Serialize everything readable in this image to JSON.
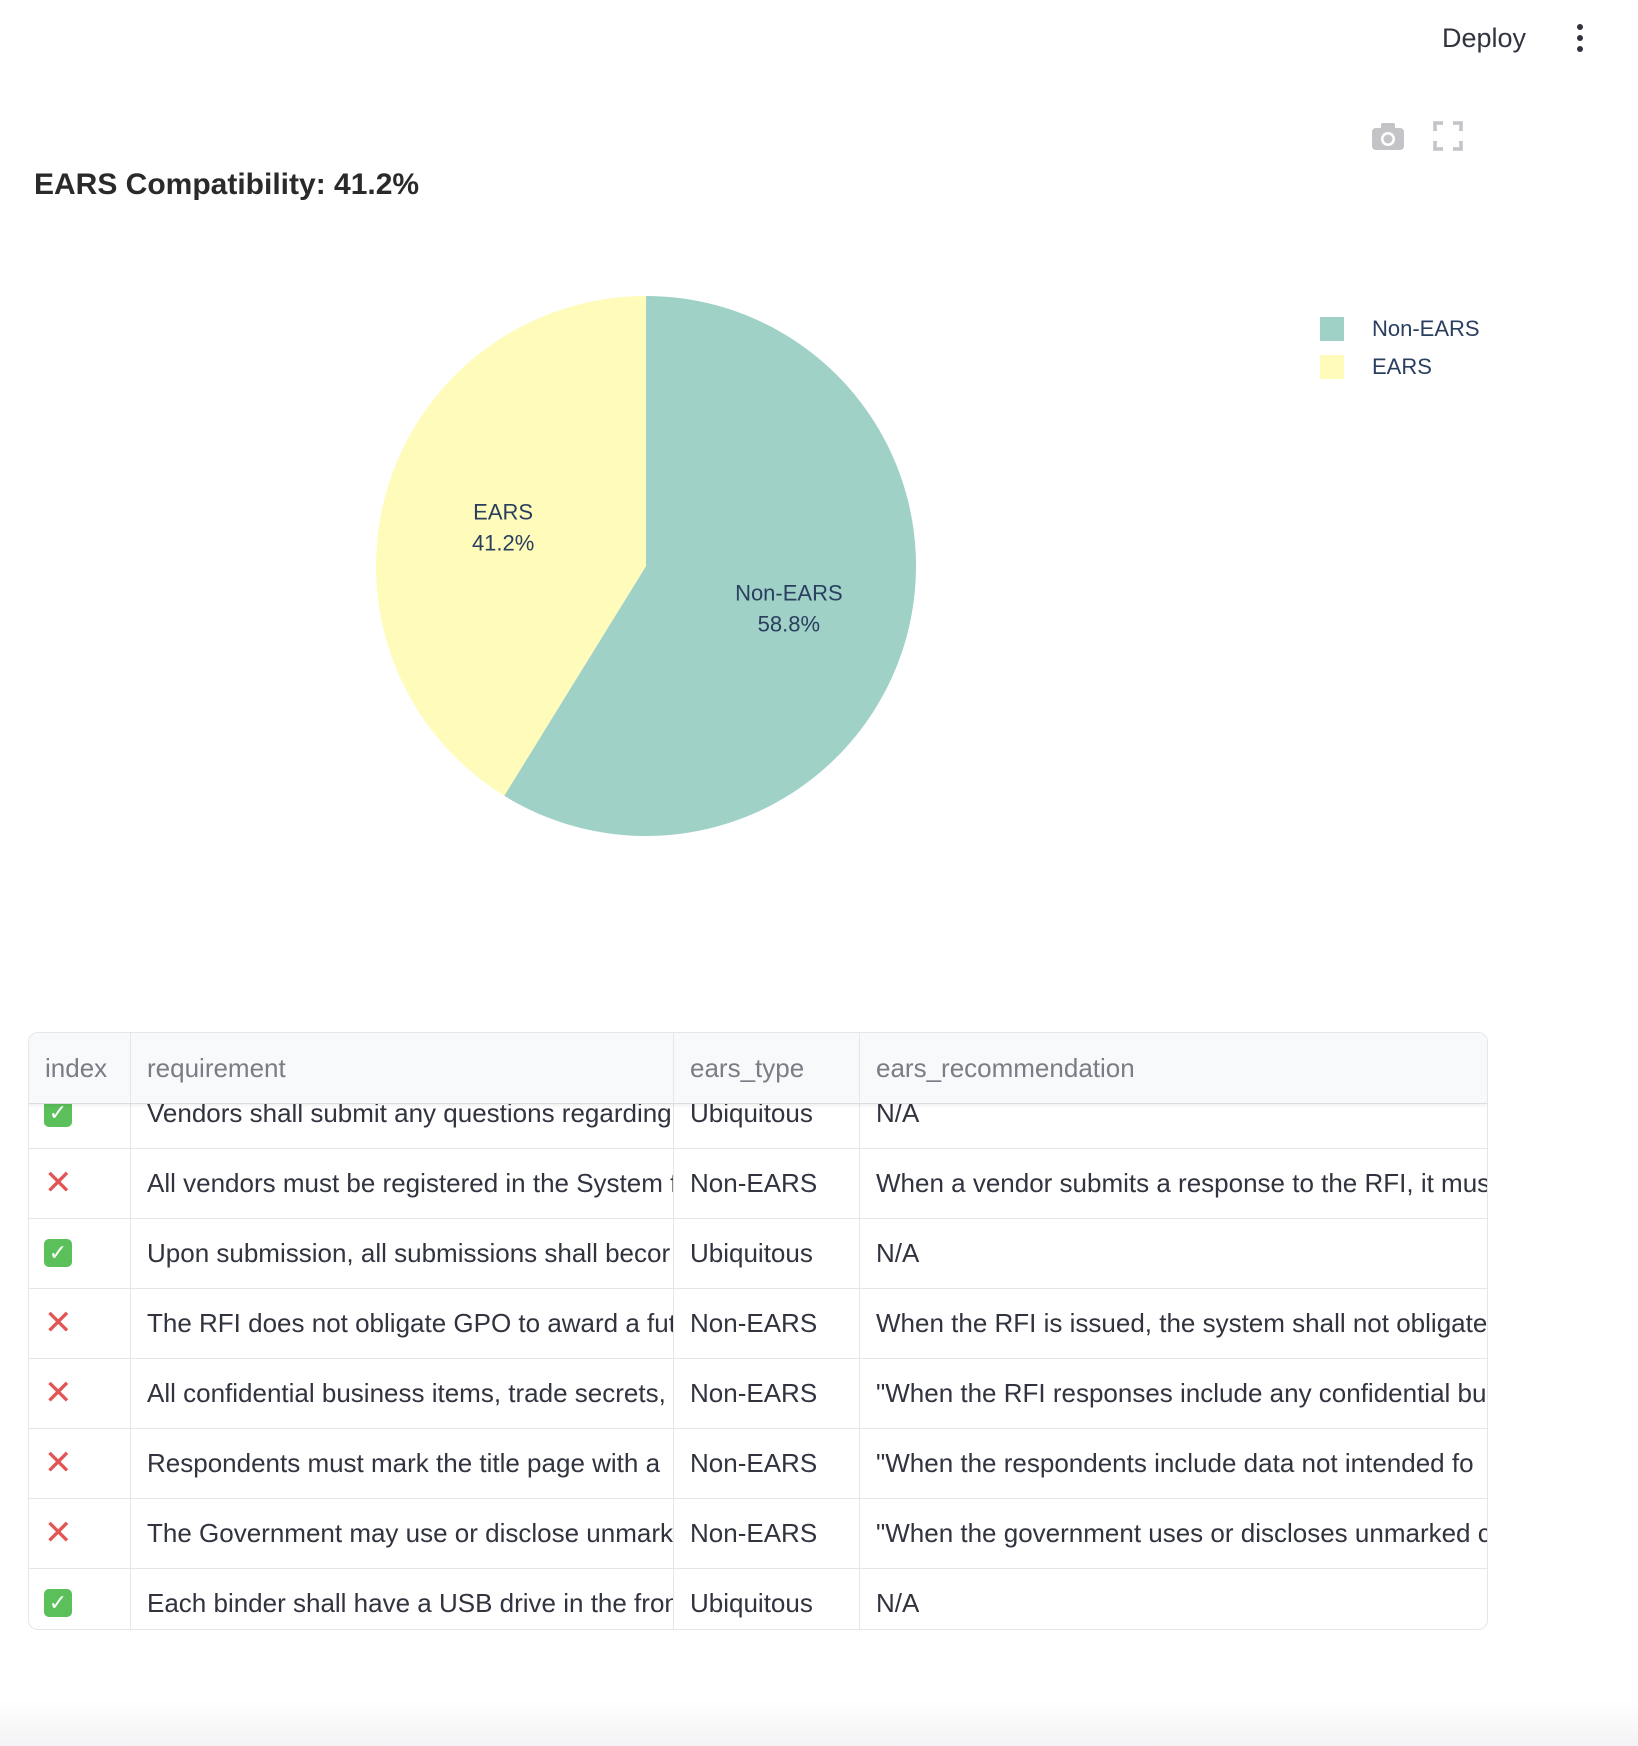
{
  "header": {
    "deploy_label": "Deploy",
    "menu_icon": "vertical-dots-icon"
  },
  "chart_toolbar": {
    "icons": [
      "camera-icon",
      "fullscreen-icon"
    ]
  },
  "chart_data": {
    "type": "pie",
    "title": "EARS Compatibility: 41.2%",
    "categories": [
      "Non-EARS",
      "EARS"
    ],
    "values": [
      58.8,
      41.2
    ],
    "slice_labels": [
      {
        "name": "Non-EARS",
        "percent": "58.8%"
      },
      {
        "name": "EARS",
        "percent": "41.2%"
      }
    ],
    "colors": [
      "#9fd1c7",
      "#fffcbb"
    ],
    "legend": {
      "placement": "top-right",
      "items": [
        "Non-EARS",
        "EARS"
      ]
    }
  },
  "table": {
    "columns": [
      "index",
      "requirement",
      "ears_type",
      "ears_recommendation"
    ],
    "rows": [
      {
        "status": "check",
        "requirement": "Vendors shall submit any questions regarding",
        "ears_type": "Ubiquitous",
        "ears_recommendation": "N/A"
      },
      {
        "status": "cross",
        "requirement": "All vendors must be registered in the System f",
        "ears_type": "Non-EARS",
        "ears_recommendation": "When a vendor submits a response to the RFI, it must"
      },
      {
        "status": "check",
        "requirement": "Upon submission, all submissions shall becor",
        "ears_type": "Ubiquitous",
        "ears_recommendation": "N/A"
      },
      {
        "status": "cross",
        "requirement": "The RFI does not obligate GPO to award a futu",
        "ears_type": "Non-EARS",
        "ears_recommendation": "When the RFI is issued, the system shall not obligate"
      },
      {
        "status": "cross",
        "requirement": "All confidential business items, trade secrets,",
        "ears_type": "Non-EARS",
        "ears_recommendation": "\"When the RFI responses include any confidential bu"
      },
      {
        "status": "cross",
        "requirement": "Respondents must mark the title page with a",
        "ears_type": "Non-EARS",
        "ears_recommendation": "\"When the respondents include data not intended fo"
      },
      {
        "status": "cross",
        "requirement": "The Government may use or disclose unmark",
        "ears_type": "Non-EARS",
        "ears_recommendation": "\"When the government uses or discloses unmarked c"
      },
      {
        "status": "check",
        "requirement": "Each binder shall have a USB drive in the fron",
        "ears_type": "Ubiquitous",
        "ears_recommendation": "N/A"
      }
    ]
  }
}
